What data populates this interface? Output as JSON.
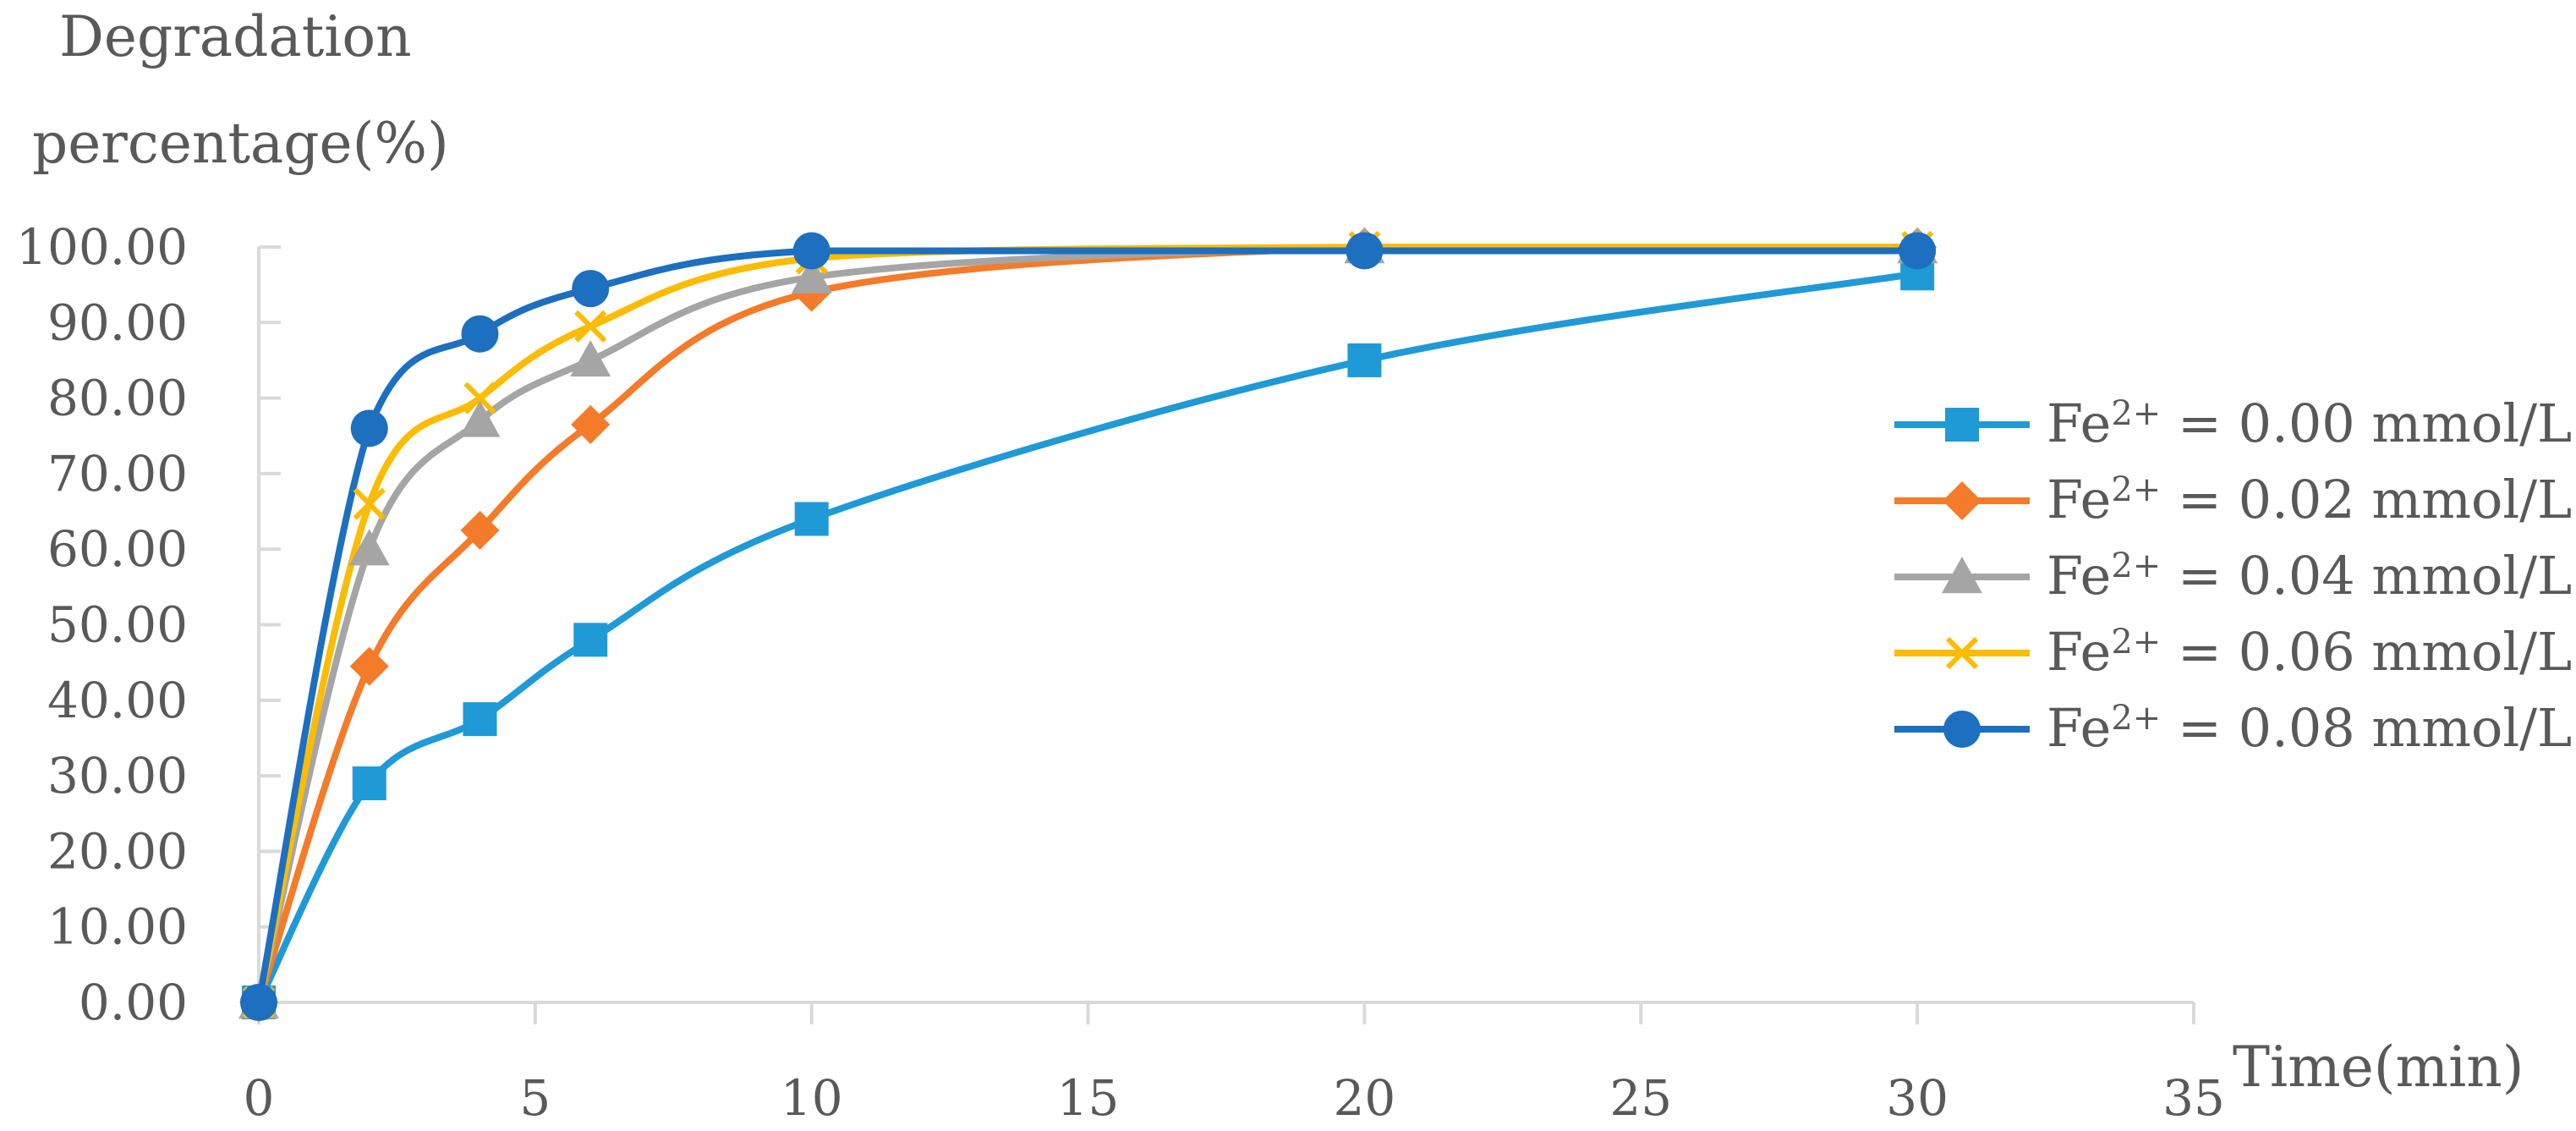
{
  "chart_data": {
    "type": "line",
    "title": "",
    "xlabel": "Time(min)",
    "ylabel_line1": "Degradation",
    "ylabel_line2": "percentage(%)",
    "xlim": [
      0,
      35
    ],
    "ylim": [
      0,
      100
    ],
    "x_ticks": [
      "0",
      "5",
      "10",
      "15",
      "20",
      "25",
      "30",
      "35"
    ],
    "y_ticks": [
      "0.00",
      "10.00",
      "20.00",
      "30.00",
      "40.00",
      "50.00",
      "60.00",
      "70.00",
      "80.00",
      "90.00",
      "100.00"
    ],
    "grid": false,
    "legend_position": "right",
    "legend_prefix": "Fe",
    "legend_superscript": "2+",
    "x": [
      0,
      2,
      4,
      6,
      10,
      20,
      30
    ],
    "series": [
      {
        "name": "Fe2+ = 0.00 mmol/L",
        "label_rest": " = 0.00 mmol/L",
        "color": "#1f9ad6",
        "marker": "square",
        "values": [
          0,
          29,
          37.5,
          48,
          64,
          85,
          96.5
        ]
      },
      {
        "name": "Fe2+ = 0.02 mmol/L",
        "label_rest": " = 0.02 mmol/L",
        "color": "#f47b29",
        "marker": "diamond",
        "values": [
          0,
          44.5,
          62.5,
          76.5,
          94,
          100,
          100
        ]
      },
      {
        "name": "Fe2+ = 0.04 mmol/L",
        "label_rest": " = 0.04 mmol/L",
        "color": "#a5a5a5",
        "marker": "triangle",
        "values": [
          0,
          60,
          77,
          85,
          96,
          100,
          100
        ]
      },
      {
        "name": "Fe2+ = 0.06 mmol/L",
        "label_rest": " = 0.06 mmol/L",
        "color": "#fbbc05",
        "marker": "x",
        "values": [
          0,
          66,
          80,
          89.5,
          98.5,
          100,
          100
        ]
      },
      {
        "name": "Fe2+ = 0.08 mmol/L",
        "label_rest": " = 0.08 mmol/L",
        "color": "#1d6fbf",
        "marker": "circle",
        "values": [
          0,
          76,
          88.5,
          94.5,
          99.5,
          99.5,
          99.5
        ]
      }
    ]
  }
}
